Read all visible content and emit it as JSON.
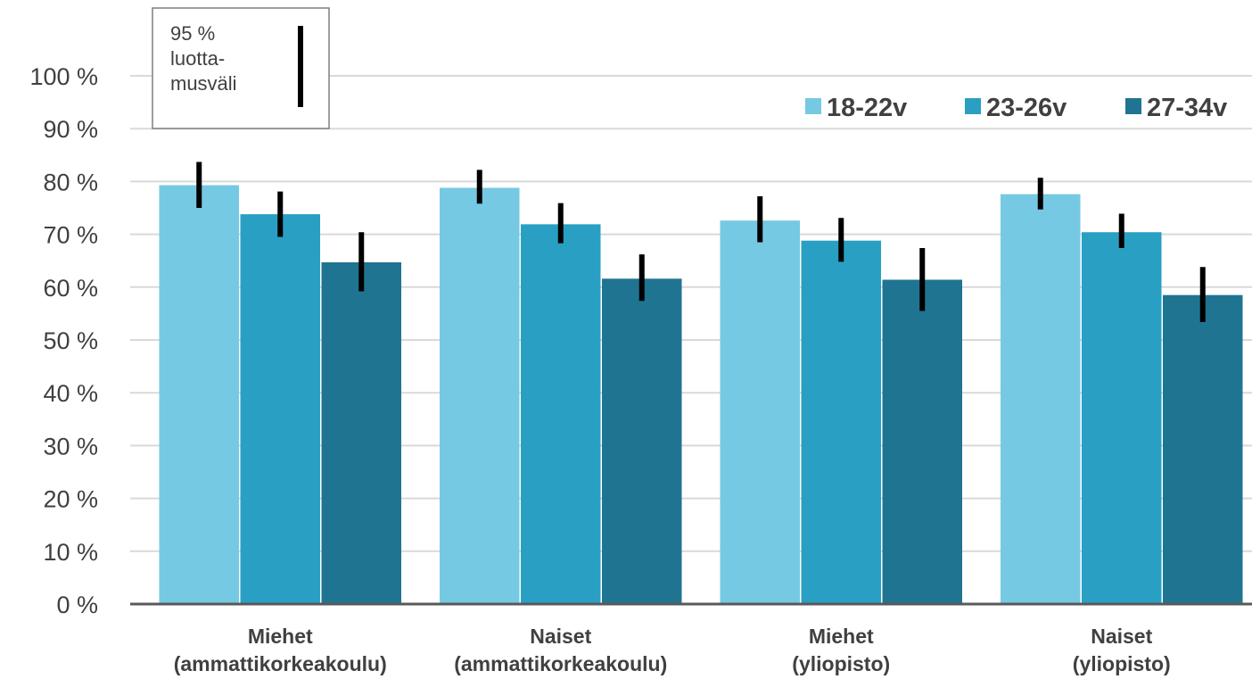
{
  "chart_data": {
    "type": "bar",
    "categories": [
      [
        "Miehet",
        "(ammattikorkeakoulu)"
      ],
      [
        "Naiset",
        "(ammattikorkeakoulu)"
      ],
      [
        "Miehet",
        "(yliopisto)"
      ],
      [
        "Naiset",
        "(yliopisto)"
      ]
    ],
    "series": [
      {
        "name": "18-22v",
        "color": "#76c9e2",
        "values": [
          79.3,
          78.8,
          72.6,
          77.6
        ],
        "ci_low": [
          75.0,
          75.8,
          68.5,
          74.7
        ],
        "ci_high": [
          83.7,
          82.2,
          77.2,
          80.7
        ]
      },
      {
        "name": "23-26v",
        "color": "#29a0c3",
        "values": [
          73.8,
          71.9,
          68.8,
          70.4
        ],
        "ci_low": [
          69.5,
          68.3,
          64.8,
          67.4
        ],
        "ci_high": [
          78.1,
          75.9,
          73.1,
          73.9
        ]
      },
      {
        "name": "27-34v",
        "color": "#1f7591",
        "values": [
          64.7,
          61.6,
          61.4,
          58.5
        ],
        "ci_low": [
          59.2,
          57.4,
          55.5,
          53.4
        ],
        "ci_high": [
          70.4,
          66.2,
          67.4,
          63.8
        ]
      }
    ],
    "ylim": [
      0,
      100
    ],
    "yticks": [
      0,
      10,
      20,
      30,
      40,
      50,
      60,
      70,
      80,
      90,
      100
    ],
    "ytick_suffix": " %",
    "grid": true,
    "legend_position": "top-right",
    "annotation": {
      "lines": [
        "95 %",
        "luotta-",
        "musväli"
      ],
      "meaning": "error bar = 95 % confidence interval"
    }
  }
}
